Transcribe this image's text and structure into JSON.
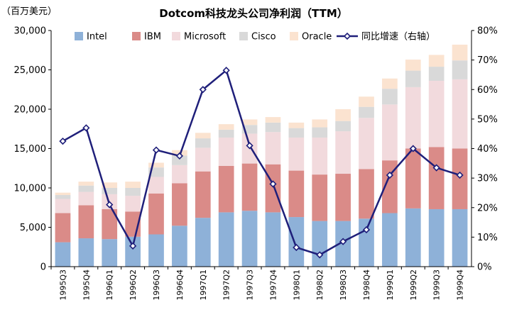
{
  "chart_data": {
    "type": "bar",
    "title": "Dotcom科技龙头公司净利润（TTM）",
    "ylabel": "（百万美元）",
    "y2label": "",
    "xlabel": "",
    "stacked": true,
    "ylim": [
      0,
      30000
    ],
    "y2lim": [
      0,
      80
    ],
    "yticks": [
      "0",
      "5,000",
      "10,000",
      "15,000",
      "20,000",
      "25,000",
      "30,000"
    ],
    "y2ticks": [
      "0%",
      "10%",
      "20%",
      "30%",
      "40%",
      "50%",
      "60%",
      "70%",
      "80%"
    ],
    "grid": false,
    "legend_position": "top",
    "categories": [
      "1995Q3",
      "1995Q4",
      "1996Q1",
      "1996Q2",
      "1996Q3",
      "1996Q4",
      "1997Q1",
      "1997Q2",
      "1997Q3",
      "1997Q4",
      "1998Q1",
      "1998Q2",
      "1998Q3",
      "1998Q4",
      "1999Q1",
      "1999Q2",
      "1999Q3",
      "1999Q4"
    ],
    "series": [
      {
        "name": "Intel",
        "color": "#8eb1d8",
        "values": [
          3100,
          3600,
          3500,
          3800,
          4100,
          5200,
          6200,
          6900,
          7100,
          6900,
          6300,
          5800,
          5800,
          6100,
          6800,
          7400,
          7300,
          7300
        ]
      },
      {
        "name": "IBM",
        "color": "#da8b88",
        "values": [
          3700,
          4200,
          3800,
          3200,
          5200,
          5400,
          5900,
          5900,
          6000,
          6100,
          5900,
          5900,
          6000,
          6300,
          6700,
          7600,
          7900,
          7700
        ]
      },
      {
        "name": "Microsoft",
        "color": "#f2dadd",
        "values": [
          1800,
          1700,
          1900,
          2000,
          2100,
          2300,
          3000,
          3600,
          3800,
          4100,
          4200,
          4700,
          5400,
          6500,
          7100,
          7800,
          8400,
          8800
        ]
      },
      {
        "name": "Cisco",
        "color": "#d9d9d9",
        "values": [
          500,
          800,
          800,
          1000,
          1200,
          1200,
          1200,
          1000,
          1100,
          1200,
          1200,
          1300,
          1300,
          1400,
          2000,
          2100,
          1800,
          2400
        ]
      },
      {
        "name": "Oracle",
        "color": "#fbe3d0",
        "values": [
          300,
          500,
          700,
          800,
          600,
          700,
          700,
          700,
          700,
          700,
          700,
          1000,
          1500,
          1300,
          1300,
          1400,
          1500,
          2000
        ]
      }
    ],
    "line": {
      "name": "同比增速（右轴）",
      "color": "#1f1f7a",
      "axis": "right",
      "values": [
        42.5,
        47,
        21,
        7,
        39.5,
        37.5,
        60,
        66.5,
        41,
        28,
        6.5,
        4,
        8.5,
        12.5,
        31,
        40,
        33.5,
        31
      ]
    }
  }
}
